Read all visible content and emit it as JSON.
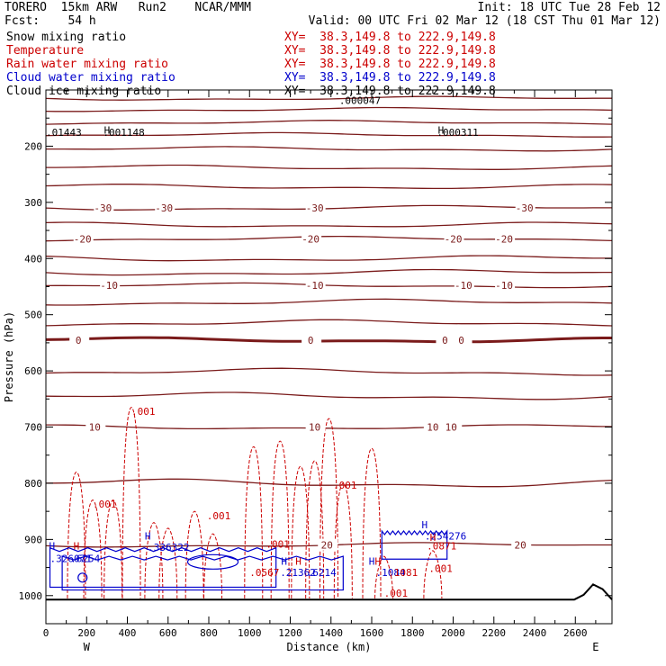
{
  "header": {
    "line1_left": "TORERO  15km ARW   Run2    NCAR/MMM",
    "line1_right": "Init: 18 UTC Tue 28 Feb 12",
    "line2_left": "Fcst:    54 h",
    "line2_right": "Valid: 00 UTC Fri 02 Mar 12 (18 CST Thu 01 Mar 12)"
  },
  "fields": [
    {
      "label": "Snow mixing ratio",
      "xy": "XY=  38.3,149.8 to 222.9,149.8",
      "color": "#000000"
    },
    {
      "label": "Temperature",
      "xy": "XY=  38.3,149.8 to 222.9,149.8",
      "color": "#cc0000"
    },
    {
      "label": "Rain water mixing ratio",
      "xy": "XY=  38.3,149.8 to 222.9,149.8",
      "color": "#cc0000"
    },
    {
      "label": "Cloud water mixing ratio",
      "xy": "XY=  38.3,149.8 to 222.9,149.8",
      "color": "#0000cc"
    },
    {
      "label": "Cloud ice mixing ratio",
      "xy": "XY=  38.3,149.8 to 222.9,149.8",
      "color": "#000000"
    }
  ],
  "chart_data": {
    "type": "line",
    "xlabel": "Distance (km)",
    "ylabel": "Pressure (hPa)",
    "xlim": [
      0,
      2780
    ],
    "ylim": [
      1050,
      100
    ],
    "x_ticks": [
      0,
      200,
      400,
      600,
      800,
      1000,
      1200,
      1400,
      1600,
      1800,
      2000,
      2200,
      2400,
      2600
    ],
    "y_ticks": [
      200,
      300,
      400,
      500,
      600,
      700,
      800,
      900,
      1000
    ],
    "x_end_labels": {
      "left": "W",
      "right": "E"
    },
    "temperature_isotherms": [
      {
        "value": -30,
        "p": 310,
        "labels": [
          {
            "x": 280,
            "t": "-30"
          },
          {
            "x": 580,
            "t": "-30"
          },
          {
            "x": 1320,
            "t": "-30"
          },
          {
            "x": 2350,
            "t": "-30"
          }
        ]
      },
      {
        "value": -20,
        "p": 365,
        "labels": [
          {
            "x": 180,
            "t": "-20"
          },
          {
            "x": 1300,
            "t": "-20"
          },
          {
            "x": 2000,
            "t": "-20"
          },
          {
            "x": 2250,
            "t": "-20"
          }
        ]
      },
      {
        "value": -10,
        "p": 448,
        "labels": [
          {
            "x": 310,
            "t": "-10"
          },
          {
            "x": 1320,
            "t": "-10"
          },
          {
            "x": 2050,
            "t": "-10"
          },
          {
            "x": 2250,
            "t": "-10"
          }
        ]
      },
      {
        "value": 0,
        "p": 545,
        "labels": [
          {
            "x": 160,
            "t": "0"
          },
          {
            "x": 1300,
            "t": "0"
          },
          {
            "x": 1960,
            "t": "0"
          },
          {
            "x": 2040,
            "t": "0"
          }
        ]
      },
      {
        "value": 10,
        "p": 700,
        "labels": [
          {
            "x": 240,
            "t": "10"
          },
          {
            "x": 1320,
            "t": "10"
          },
          {
            "x": 1900,
            "t": "10"
          },
          {
            "x": 1990,
            "t": "10"
          }
        ]
      },
      {
        "value": 20,
        "p": 910,
        "labels": [
          {
            "x": 1380,
            "t": "20"
          },
          {
            "x": 2330,
            "t": "20"
          }
        ]
      }
    ],
    "background_isotherm_levels": [
      115,
      135,
      158,
      180,
      205,
      238,
      272,
      340,
      400,
      425,
      478,
      515,
      602,
      645,
      800
    ],
    "rain_labels": [
      {
        "x": 420,
        "p": 678,
        "t": ".001"
      },
      {
        "x": 230,
        "p": 843,
        "t": ".001"
      },
      {
        "x": 790,
        "p": 864,
        "t": ".001"
      },
      {
        "x": 1410,
        "p": 810,
        "t": ".001"
      },
      {
        "x": 1880,
        "p": 958,
        "t": ".001"
      },
      {
        "x": 1660,
        "p": 1002,
        "t": ".001"
      },
      {
        "x": 1080,
        "p": 915,
        "t": ".001"
      }
    ],
    "snow_labels": [
      {
        "x": 0,
        "p": 182,
        "t": ".01443"
      },
      {
        "x": 280,
        "p": 182,
        "t": ".001148"
      },
      {
        "x": 1920,
        "p": 182,
        "t": ".000311"
      },
      {
        "x": 1440,
        "p": 125,
        "t": ".000047"
      }
    ],
    "cloud_labels": [
      {
        "x": 500,
        "p": 920,
        "t": ".336322"
      },
      {
        "x": 1860,
        "p": 900,
        "t": ".254276"
      },
      {
        "x": 20,
        "p": 940,
        "t": ".326071"
      },
      {
        "x": 120,
        "p": 940,
        "t": ".6254"
      },
      {
        "x": 1150,
        "p": 965,
        "t": ".21362"
      },
      {
        "x": 1280,
        "p": 965,
        "t": ".6214"
      },
      {
        "x": 1620,
        "p": 965,
        "t": ".1084"
      }
    ],
    "maxima_labels": [
      {
        "x": 1000,
        "p": 965,
        "t": ".0567"
      },
      {
        "x": 1680,
        "p": 965,
        "t": ".1081"
      },
      {
        "x": 1870,
        "p": 918,
        "t": ".0871"
      }
    ],
    "h_markers": [
      {
        "x": 300,
        "p": 178,
        "c": "#000000"
      },
      {
        "x": 1940,
        "p": 178,
        "c": "#000000"
      },
      {
        "x": 30,
        "p": 918,
        "c": "#0000cc"
      },
      {
        "x": 150,
        "p": 918,
        "c": "#cc0000"
      },
      {
        "x": 500,
        "p": 900,
        "c": "#0000cc"
      },
      {
        "x": 1170,
        "p": 945,
        "c": "#0000cc"
      },
      {
        "x": 1240,
        "p": 945,
        "c": "#cc0000"
      },
      {
        "x": 1600,
        "p": 945,
        "c": "#0000cc"
      },
      {
        "x": 1630,
        "p": 945,
        "c": "#cc0000"
      },
      {
        "x": 1860,
        "p": 880,
        "c": "#0000cc"
      },
      {
        "x": 1900,
        "p": 903,
        "c": "#cc0000"
      }
    ]
  }
}
